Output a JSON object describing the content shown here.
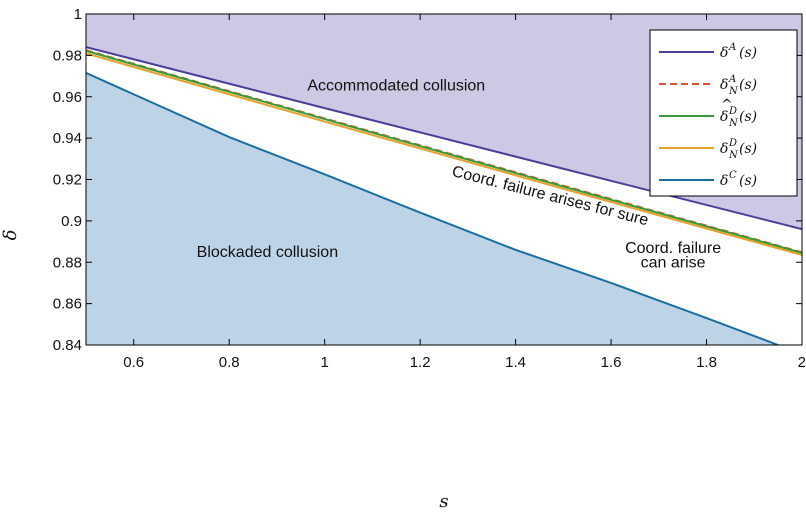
{
  "chart_data": {
    "type": "line",
    "title": "",
    "xlabel": "s",
    "ylabel": "δ",
    "xlim": [
      0.5,
      2.0
    ],
    "ylim": [
      0.84,
      1.0
    ],
    "xticks": [
      0.6,
      0.8,
      1,
      1.2,
      1.4,
      1.6,
      1.8,
      2
    ],
    "xtick_labels": [
      "0.6",
      "0.8",
      "1",
      "1.2",
      "1.4",
      "1.6",
      "1.8",
      "2"
    ],
    "yticks": [
      0.84,
      0.86,
      0.88,
      0.9,
      0.92,
      0.94,
      0.96,
      0.98,
      1.0
    ],
    "ytick_labels": [
      "0.84",
      "0.86",
      "0.88",
      "0.9",
      "0.92",
      "0.94",
      "0.96",
      "0.98",
      "1"
    ],
    "grid": false,
    "legend_position": "top-right",
    "series": [
      {
        "name": "δA(s)",
        "legend_base": "δ",
        "legend_sup": "A",
        "legend_sub": "",
        "legend_hat": false,
        "legend_arg": "(s)",
        "color": "#4a3f9b",
        "dash": "solid",
        "x": [
          0.5,
          1.0,
          1.5,
          2.0
        ],
        "y": [
          0.984,
          0.9545,
          0.9252,
          0.896
        ]
      },
      {
        "name": "δAN(s)",
        "legend_base": "δ",
        "legend_sup": "A",
        "legend_sub": "N",
        "legend_hat": false,
        "legend_arg": "(s)",
        "color": "#d9542c",
        "dash": "dashed",
        "x": [
          0.5,
          1.0,
          1.5,
          2.0
        ],
        "y": [
          0.9825,
          0.9495,
          0.917,
          0.8848
        ]
      },
      {
        "name": "δ̂DN(s)",
        "legend_base": "δ",
        "legend_sup": "D",
        "legend_sub": "N",
        "legend_hat": true,
        "legend_arg": "(s)",
        "color": "#3a9a3a",
        "dash": "solid",
        "x": [
          0.5,
          1.0,
          1.5,
          2.0
        ],
        "y": [
          0.9822,
          0.9492,
          0.9166,
          0.8845
        ]
      },
      {
        "name": "δDN(s)",
        "legend_base": "δ",
        "legend_sup": "D",
        "legend_sub": "N",
        "legend_hat": false,
        "legend_arg": "(s)",
        "color": "#e5a22a",
        "dash": "solid",
        "x": [
          0.5,
          1.0,
          1.5,
          2.0
        ],
        "y": [
          0.981,
          0.948,
          0.9155,
          0.8835
        ]
      },
      {
        "name": "δC(s)",
        "legend_base": "δ",
        "legend_sup": "C",
        "legend_sub": "",
        "legend_hat": false,
        "legend_arg": "(s)",
        "color": "#1a6ea0",
        "dash": "solid",
        "x": [
          0.5,
          0.8,
          1.0,
          1.2,
          1.4,
          1.6,
          1.8,
          1.95
        ],
        "y": [
          0.9715,
          0.9405,
          0.9225,
          0.904,
          0.886,
          0.87,
          0.853,
          0.84
        ]
      }
    ],
    "regions": [
      {
        "name": "accommodated",
        "fill": "#cdc9e4",
        "label": "Accommodated collusion"
      },
      {
        "name": "blockaded",
        "fill": "#bcd4e6",
        "label": "Blockaded collusion"
      }
    ],
    "annotations": [
      {
        "text": "Accommodated collusion",
        "x": 1.15,
        "y": 0.963,
        "rotate": false
      },
      {
        "text": "Coord. failure arises for sure",
        "x": 1.47,
        "y": 0.9098,
        "rotate": true
      },
      {
        "text": "Blockaded collusion",
        "x": 0.88,
        "y": 0.8825,
        "rotate": false
      },
      {
        "text": "Coord. failure",
        "x": 1.73,
        "y": 0.8845,
        "rotate": false
      },
      {
        "text": "can arise",
        "x": 1.73,
        "y": 0.8775,
        "rotate": false
      }
    ]
  }
}
